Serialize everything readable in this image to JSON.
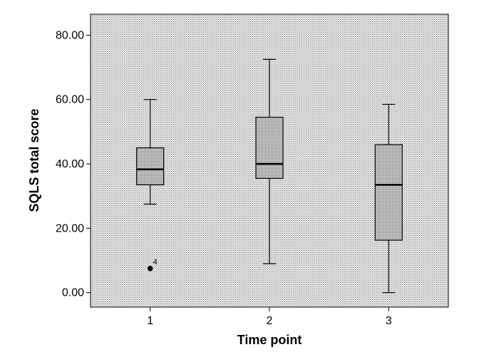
{
  "chart_data": {
    "type": "boxplot",
    "xlabel": "Time point",
    "ylabel": "SQLS total score",
    "ylim": [
      -4.5,
      86.5
    ],
    "yticks": [
      0,
      20,
      40,
      60,
      80
    ],
    "ytick_labels": [
      "0.00",
      "20.00",
      "40.00",
      "60.00",
      "80.00"
    ],
    "categories": [
      "1",
      "2",
      "3"
    ],
    "boxes": [
      {
        "category": "1",
        "whisker_low": 27.5,
        "q1": 33.5,
        "median": 38.3,
        "q3": 45.0,
        "whisker_high": 60.0,
        "outliers": [
          {
            "value": 7.5,
            "label": "4"
          }
        ]
      },
      {
        "category": "2",
        "whisker_low": 9.0,
        "q1": 35.5,
        "median": 40.0,
        "q3": 54.5,
        "whisker_high": 72.5,
        "outliers": []
      },
      {
        "category": "3",
        "whisker_low": 0.0,
        "q1": 16.3,
        "median": 33.5,
        "q3": 46.0,
        "whisker_high": 58.5,
        "outliers": []
      }
    ],
    "grid": false,
    "colors": {
      "plot_background": "#d9d9d9",
      "box_fill": "#bdbdbd",
      "line": "#000000"
    }
  }
}
